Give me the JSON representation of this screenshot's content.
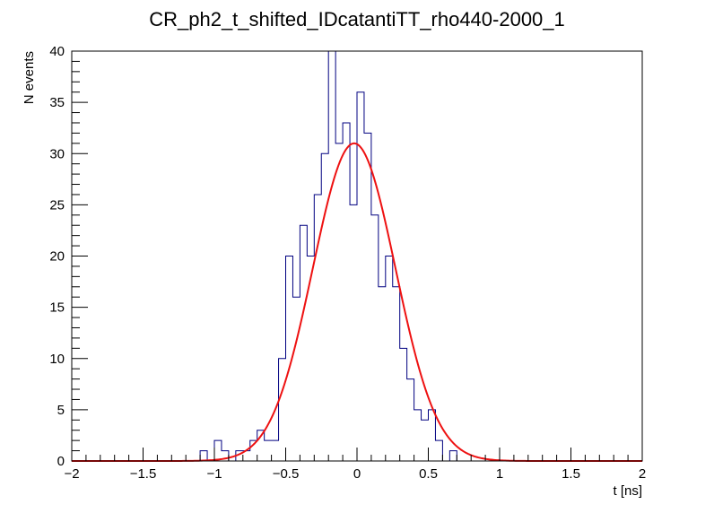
{
  "chart_data": {
    "type": "histogram",
    "title": "CR_ph2_t_shifted_IDcatantiTT_rho440-2000_1",
    "xlabel": "t [ns]",
    "ylabel": "N events",
    "xlim": [
      -2,
      2
    ],
    "ylim": [
      0,
      40
    ],
    "grid": false,
    "x_ticks": [
      -2,
      -1.5,
      -1,
      -0.5,
      0,
      0.5,
      1,
      1.5,
      2
    ],
    "x_tick_labels": [
      "−2",
      "−1.5",
      "−1",
      "−0.5",
      "0",
      "0.5",
      "1",
      "1.5",
      "2"
    ],
    "y_ticks": [
      0,
      5,
      10,
      15,
      20,
      25,
      30,
      35,
      40
    ],
    "y_tick_labels": [
      "0",
      "5",
      "10",
      "15",
      "20",
      "25",
      "30",
      "35",
      "40"
    ],
    "bin_width": 0.05,
    "bin_edges_start": -2,
    "series": [
      {
        "style": "step",
        "color": "#000080",
        "values": [
          0,
          0,
          0,
          0,
          0,
          0,
          0,
          0,
          0,
          0,
          0,
          0,
          0,
          0,
          0,
          0,
          0,
          0,
          1,
          0,
          2,
          1,
          0,
          1,
          1,
          2,
          3,
          2,
          2,
          10,
          20,
          16,
          23,
          20,
          26,
          30,
          40,
          31,
          33,
          25,
          36,
          32,
          24,
          17,
          20,
          17,
          11,
          8,
          5,
          4,
          5,
          2,
          0,
          1,
          0,
          0,
          0,
          0,
          0,
          0,
          0,
          0,
          0,
          0,
          0,
          0,
          0,
          0,
          0,
          0,
          0,
          0,
          0,
          0,
          0,
          0,
          0,
          0,
          0,
          0
        ]
      },
      {
        "style": "line",
        "color": "#ee1111",
        "function": "gaussian",
        "amplitude": 31,
        "mean": -0.02,
        "sigma": 0.29
      }
    ]
  }
}
